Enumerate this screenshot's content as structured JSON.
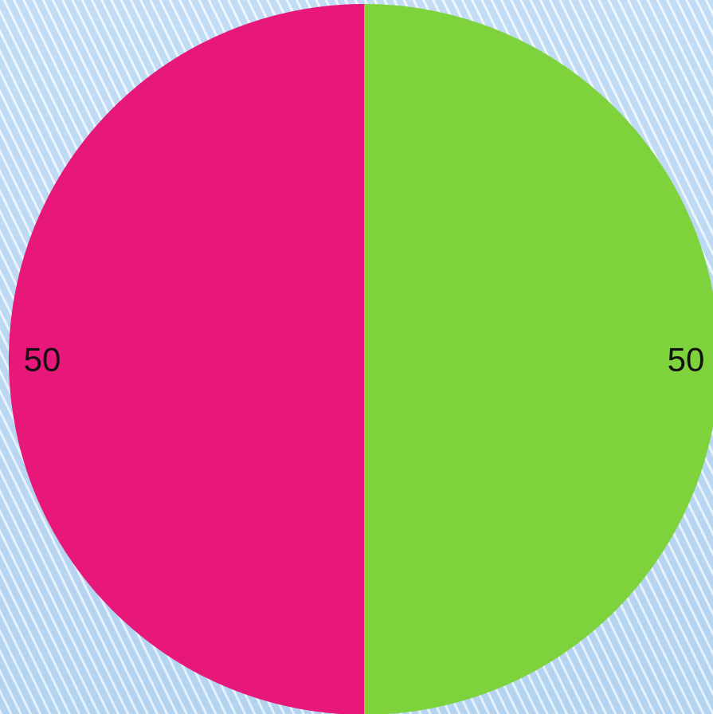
{
  "chart_data": {
    "type": "pie",
    "title": "",
    "categories": [
      "",
      ""
    ],
    "values": [
      50,
      50
    ],
    "value_labels": [
      "50",
      "50"
    ],
    "colors": [
      "#7ed23c",
      "#e8177a"
    ],
    "start": "top",
    "direction": "clockwise",
    "legend": "none"
  }
}
